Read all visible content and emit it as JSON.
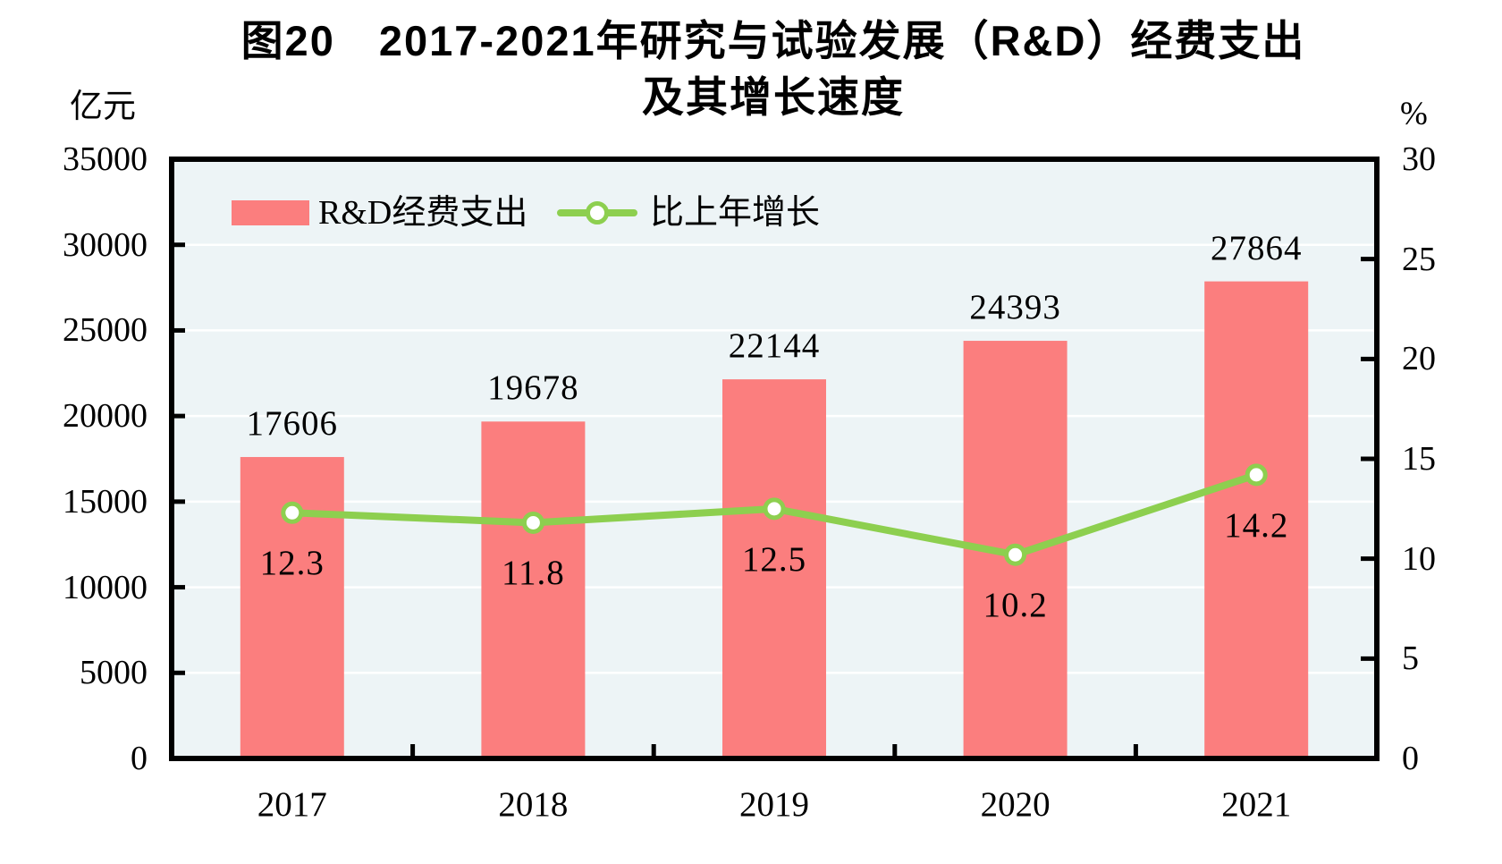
{
  "title": {
    "line1": "图20　2017-2021年研究与试验发展（R&D）经费支出",
    "line2": "及其增长速度"
  },
  "axes": {
    "left_unit": "亿元",
    "right_unit": "%"
  },
  "legend": {
    "bar_label": "R&D经费支出",
    "line_label": "比上年增长"
  },
  "colors": {
    "bar": "#fb7e7e",
    "line": "#8dcf4f",
    "plot_bg": "#edf4f6",
    "grid": "#ffffff",
    "frame": "#000000",
    "text": "#000000"
  },
  "chart_data": {
    "type": "combo",
    "categories": [
      "2017",
      "2018",
      "2019",
      "2020",
      "2021"
    ],
    "series": [
      {
        "name": "R&D经费支出",
        "type": "bar",
        "axis": "left",
        "color": "#fb7e7e",
        "values": [
          17606,
          19678,
          22144,
          24393,
          27864
        ],
        "data_labels": [
          "17606",
          "19678",
          "22144",
          "24393",
          "27864"
        ]
      },
      {
        "name": "比上年增长",
        "type": "line",
        "axis": "right",
        "color": "#8dcf4f",
        "marker": "open-circle-white-fill",
        "values": [
          12.3,
          11.8,
          12.5,
          10.2,
          14.2
        ],
        "data_labels": [
          "12.3",
          "11.8",
          "12.5",
          "10.2",
          "14.2"
        ]
      }
    ],
    "title": "图20 2017-2021年研究与试验发展（R&D）经费支出及其增长速度",
    "left_axis": {
      "label": "亿元",
      "min": 0,
      "max": 35000,
      "step": 5000,
      "ticks": [
        "0",
        "5000",
        "10000",
        "15000",
        "20000",
        "25000",
        "30000",
        "35000"
      ]
    },
    "right_axis": {
      "label": "%",
      "min": 0,
      "max": 30,
      "step": 5,
      "ticks": [
        "0",
        "5",
        "10",
        "15",
        "20",
        "25",
        "30"
      ]
    },
    "grid": "horizontal white gridlines at left-axis 5000 steps",
    "legend_position": "top-left inside plot area"
  }
}
